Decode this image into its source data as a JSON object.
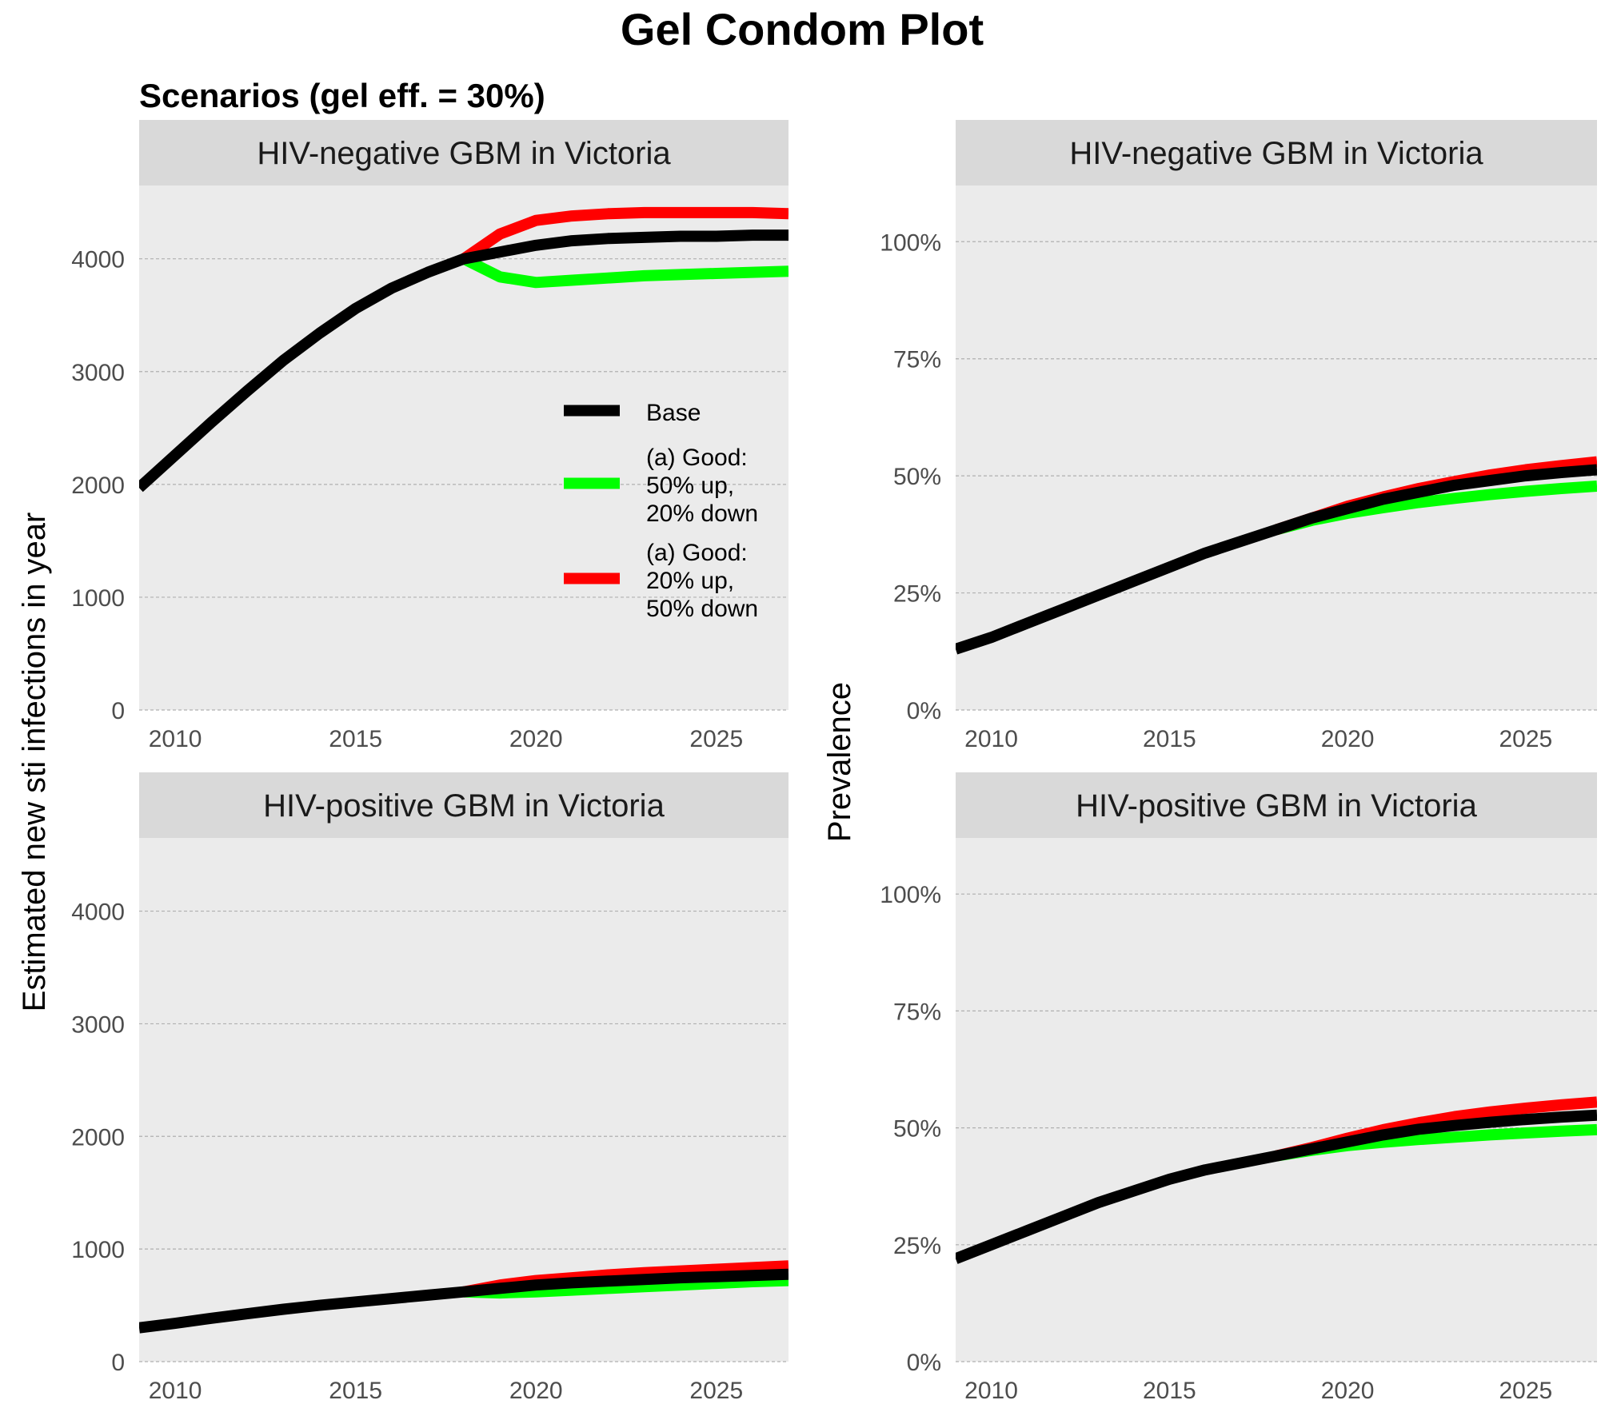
{
  "title": "Gel Condom Plot",
  "subtitle": "Scenarios (gel eff. = 30%)",
  "ylabel_left": "Estimated new sti infections in year",
  "ylabel_right": "Prevalence",
  "legend": {
    "placement": "inside top-left panel, right side",
    "entries": [
      {
        "lines": [
          "Base"
        ],
        "color": "#000000"
      },
      {
        "lines": [
          "(a) Good:",
          "50% up,",
          "20% down"
        ],
        "color": "#00ff00"
      },
      {
        "lines": [
          "(a) Good:",
          "20% up,",
          "50% down"
        ],
        "color": "#ff0000"
      }
    ]
  },
  "colors": {
    "panel_bg": "#ebebeb",
    "strip_bg": "#d9d9d9",
    "grid": "#b0b0b0",
    "base": "#000000",
    "good_50up": "#00ff00",
    "good_20up": "#ff0000"
  },
  "chart_data": [
    {
      "type": "line",
      "title": "HIV-negative GBM in Victoria",
      "xlim": [
        2009,
        2027
      ],
      "ylim": [
        0,
        4650
      ],
      "xticks": [
        2010,
        2015,
        2020,
        2025
      ],
      "yticks": [
        0,
        1000,
        2000,
        3000,
        4000
      ],
      "ytick_labels": [
        "0",
        "1000",
        "2000",
        "3000",
        "4000"
      ],
      "series": [
        {
          "name": "Base",
          "x": [
            2009,
            2010,
            2011,
            2012,
            2013,
            2014,
            2015,
            2016,
            2017,
            2018,
            2019,
            2020,
            2021,
            2022,
            2023,
            2024,
            2025,
            2026,
            2027
          ],
          "y": [
            1970,
            2260,
            2550,
            2830,
            3100,
            3340,
            3560,
            3740,
            3880,
            4000,
            4060,
            4120,
            4160,
            4180,
            4190,
            4200,
            4200,
            4210,
            4210
          ]
        },
        {
          "name": "(a) Good: 50% up, 20% down",
          "x": [
            2018,
            2019,
            2020,
            2021,
            2022,
            2023,
            2024,
            2025,
            2026,
            2027
          ],
          "y": [
            4000,
            3840,
            3790,
            3810,
            3830,
            3850,
            3860,
            3870,
            3880,
            3890
          ]
        },
        {
          "name": "(a) Good: 20% up, 50% down",
          "x": [
            2018,
            2019,
            2020,
            2021,
            2022,
            2023,
            2024,
            2025,
            2026,
            2027
          ],
          "y": [
            4000,
            4220,
            4340,
            4380,
            4400,
            4410,
            4410,
            4410,
            4410,
            4400
          ]
        }
      ]
    },
    {
      "type": "line",
      "title": "HIV-negative GBM in Victoria",
      "xlim": [
        2009,
        2027
      ],
      "ylim": [
        0,
        1.12
      ],
      "xticks": [
        2010,
        2015,
        2020,
        2025
      ],
      "yticks": [
        0,
        0.25,
        0.5,
        0.75,
        1.0
      ],
      "ytick_labels": [
        "0%",
        "25%",
        "50%",
        "75%",
        "100%"
      ],
      "series": [
        {
          "name": "Base",
          "x": [
            2009,
            2010,
            2011,
            2012,
            2013,
            2014,
            2015,
            2016,
            2017,
            2018,
            2019,
            2020,
            2021,
            2022,
            2023,
            2024,
            2025,
            2026,
            2027
          ],
          "y": [
            0.13,
            0.155,
            0.185,
            0.215,
            0.245,
            0.275,
            0.305,
            0.335,
            0.36,
            0.385,
            0.41,
            0.43,
            0.45,
            0.465,
            0.48,
            0.49,
            0.5,
            0.507,
            0.513
          ]
        },
        {
          "name": "(a) Good: 50% up, 20% down",
          "x": [
            2018,
            2019,
            2020,
            2021,
            2022,
            2023,
            2024,
            2025,
            2026,
            2027
          ],
          "y": [
            0.385,
            0.405,
            0.42,
            0.432,
            0.443,
            0.452,
            0.46,
            0.467,
            0.473,
            0.478
          ]
        },
        {
          "name": "(a) Good: 20% up, 50% down",
          "x": [
            2018,
            2019,
            2020,
            2021,
            2022,
            2023,
            2024,
            2025,
            2026,
            2027
          ],
          "y": [
            0.385,
            0.41,
            0.435,
            0.455,
            0.473,
            0.488,
            0.502,
            0.513,
            0.522,
            0.53
          ]
        }
      ]
    },
    {
      "type": "line",
      "title": "HIV-positive GBM in Victoria",
      "xlim": [
        2009,
        2027
      ],
      "ylim": [
        0,
        4650
      ],
      "xticks": [
        2010,
        2015,
        2020,
        2025
      ],
      "yticks": [
        0,
        1000,
        2000,
        3000,
        4000
      ],
      "ytick_labels": [
        "0",
        "1000",
        "2000",
        "3000",
        "4000"
      ],
      "series": [
        {
          "name": "Base",
          "x": [
            2009,
            2010,
            2011,
            2012,
            2013,
            2014,
            2015,
            2016,
            2017,
            2018,
            2019,
            2020,
            2021,
            2022,
            2023,
            2024,
            2025,
            2026,
            2027
          ],
          "y": [
            300,
            340,
            385,
            425,
            465,
            500,
            530,
            560,
            590,
            620,
            650,
            680,
            700,
            715,
            730,
            745,
            755,
            765,
            775
          ]
        },
        {
          "name": "(a) Good: 50% up, 20% down",
          "x": [
            2018,
            2019,
            2020,
            2021,
            2022,
            2023,
            2024,
            2025,
            2026,
            2027
          ],
          "y": [
            620,
            610,
            620,
            635,
            650,
            665,
            680,
            695,
            710,
            720
          ]
        },
        {
          "name": "(a) Good: 20% up, 50% down",
          "x": [
            2018,
            2019,
            2020,
            2021,
            2022,
            2023,
            2024,
            2025,
            2026,
            2027
          ],
          "y": [
            620,
            680,
            720,
            745,
            770,
            790,
            805,
            820,
            835,
            850
          ]
        }
      ]
    },
    {
      "type": "line",
      "title": "HIV-positive GBM in Victoria",
      "xlim": [
        2009,
        2027
      ],
      "ylim": [
        0,
        1.12
      ],
      "xticks": [
        2010,
        2015,
        2020,
        2025
      ],
      "yticks": [
        0,
        0.25,
        0.5,
        0.75,
        1.0
      ],
      "ytick_labels": [
        "0%",
        "25%",
        "50%",
        "75%",
        "100%"
      ],
      "series": [
        {
          "name": "Base",
          "x": [
            2009,
            2010,
            2011,
            2012,
            2013,
            2014,
            2015,
            2016,
            2017,
            2018,
            2019,
            2020,
            2021,
            2022,
            2023,
            2024,
            2025,
            2026,
            2027
          ],
          "y": [
            0.22,
            0.25,
            0.28,
            0.31,
            0.34,
            0.365,
            0.39,
            0.41,
            0.425,
            0.44,
            0.455,
            0.47,
            0.485,
            0.497,
            0.505,
            0.512,
            0.518,
            0.523,
            0.527
          ]
        },
        {
          "name": "(a) Good: 50% up, 20% down",
          "x": [
            2018,
            2019,
            2020,
            2021,
            2022,
            2023,
            2024,
            2025,
            2026,
            2027
          ],
          "y": [
            0.44,
            0.452,
            0.462,
            0.469,
            0.475,
            0.48,
            0.485,
            0.489,
            0.493,
            0.496
          ]
        },
        {
          "name": "(a) Good: 20% up, 50% down",
          "x": [
            2018,
            2019,
            2020,
            2021,
            2022,
            2023,
            2024,
            2025,
            2026,
            2027
          ],
          "y": [
            0.44,
            0.458,
            0.478,
            0.496,
            0.511,
            0.524,
            0.534,
            0.542,
            0.549,
            0.555
          ]
        }
      ]
    }
  ]
}
